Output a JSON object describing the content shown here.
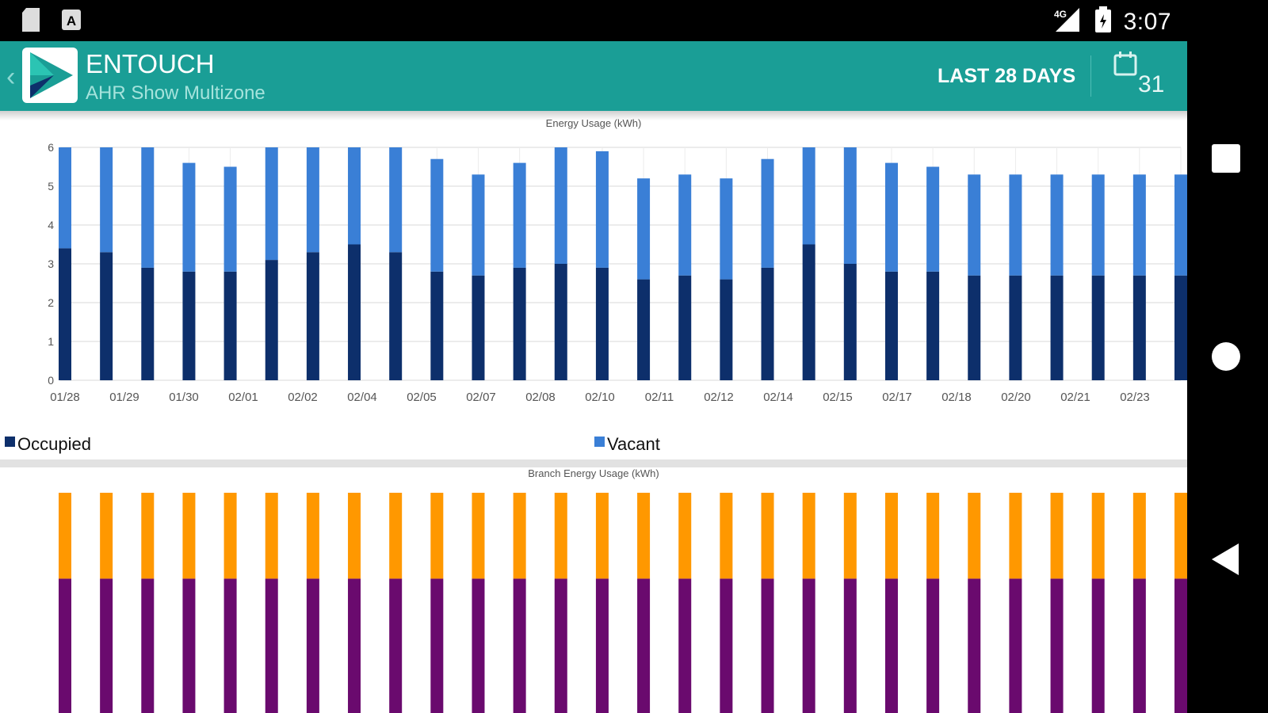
{
  "status_bar": {
    "time": "3:07",
    "network": "4G"
  },
  "app_bar": {
    "title": "ENTOUCH",
    "subtitle": "AHR Show Multizone",
    "range_label": "LAST 28 DAYS",
    "calendar_day": "31"
  },
  "colors": {
    "app_bar": "#1a9e96",
    "occupied": "#0d2f6b",
    "vacant": "#3a7fd6",
    "branch_top": "#ff9800",
    "branch_bottom": "#6a0a6e"
  },
  "legend": {
    "occupied": "Occupied",
    "vacant": "Vacant"
  },
  "chart_data": [
    {
      "type": "bar",
      "stacked": true,
      "title": "Energy Usage (kWh)",
      "ylim": [
        0,
        6
      ],
      "yticks": [
        "0",
        "1",
        "2",
        "3",
        "4",
        "5",
        "6"
      ],
      "grid": true,
      "legend_position": "bottom",
      "tick_labels": [
        "01/28",
        "01/29",
        "01/30",
        "02/01",
        "02/02",
        "02/04",
        "02/05",
        "02/07",
        "02/08",
        "02/10",
        "02/11",
        "02/12",
        "02/14",
        "02/15",
        "02/17",
        "02/18",
        "02/20",
        "02/21",
        "02/23"
      ],
      "series": [
        {
          "name": "Occupied",
          "values": [
            3.4,
            3.3,
            2.9,
            2.8,
            2.8,
            3.1,
            3.3,
            3.5,
            3.3,
            2.8,
            2.7,
            2.9,
            3.0,
            2.9,
            2.6,
            2.7,
            2.6,
            2.9,
            3.5,
            3.0,
            2.8,
            2.8,
            2.7,
            2.7,
            2.7,
            2.7,
            2.7,
            2.7
          ]
        },
        {
          "name": "Vacant",
          "values": [
            2.6,
            2.7,
            3.1,
            2.8,
            2.7,
            2.9,
            2.7,
            2.5,
            2.7,
            2.9,
            2.6,
            2.7,
            3.0,
            3.0,
            2.6,
            2.6,
            2.6,
            2.8,
            2.5,
            3.0,
            2.8,
            2.7,
            2.6,
            2.6,
            2.6,
            2.6,
            2.6,
            2.6
          ]
        }
      ]
    },
    {
      "type": "bar",
      "stacked": true,
      "title": "Branch Energy Usage (kWh)",
      "bar_count": 28,
      "series": [
        {
          "values_fraction_of_visible": [
            0.61,
            0.61,
            0.61,
            0.61,
            0.61,
            0.61,
            0.61,
            0.61,
            0.61,
            0.61,
            0.61,
            0.61,
            0.61,
            0.61,
            0.61,
            0.61,
            0.61,
            0.61,
            0.61,
            0.61,
            0.61,
            0.61,
            0.61,
            0.61,
            0.61,
            0.61,
            0.61,
            0.61
          ]
        },
        {
          "values_fraction_of_visible": [
            0.39,
            0.39,
            0.39,
            0.39,
            0.39,
            0.39,
            0.39,
            0.39,
            0.39,
            0.39,
            0.39,
            0.39,
            0.39,
            0.39,
            0.39,
            0.39,
            0.39,
            0.39,
            0.39,
            0.39,
            0.39,
            0.39,
            0.39,
            0.39,
            0.39,
            0.39,
            0.39,
            0.39
          ]
        }
      ]
    }
  ]
}
